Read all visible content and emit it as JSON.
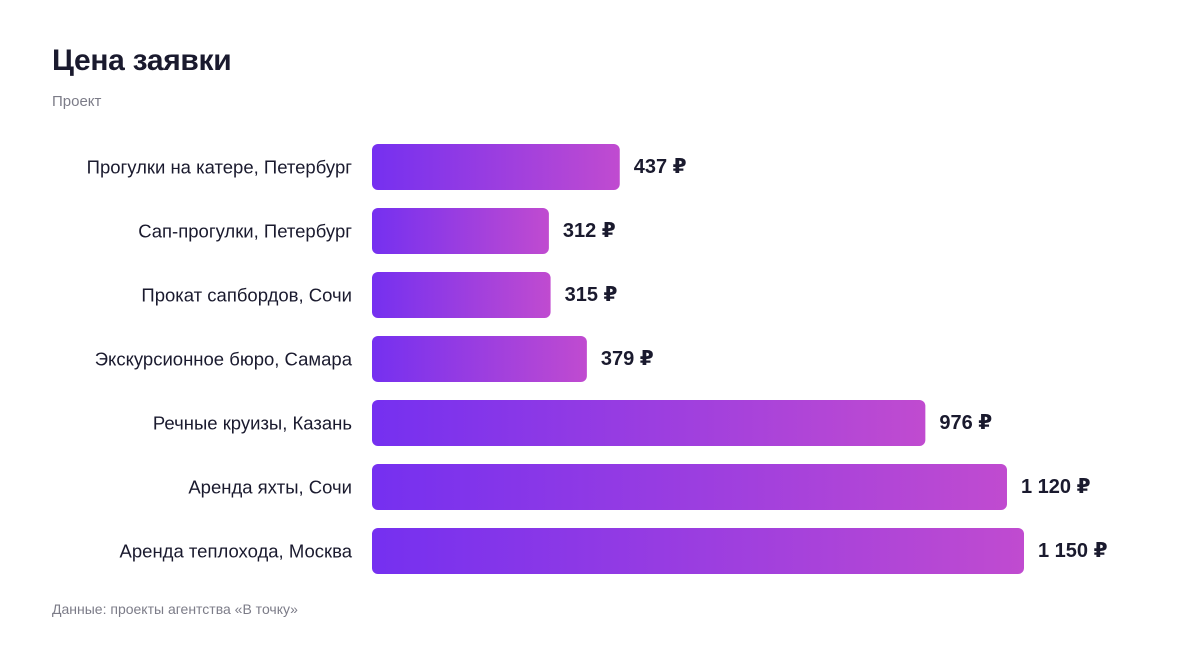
{
  "header": {
    "title": "Цена заявки",
    "subtitle": "Проект"
  },
  "footer": {
    "source": "Данные: проекты агентства «В точку»"
  },
  "colors": {
    "bar_gradient_start": "#7530f0",
    "bar_gradient_end": "#c04bd0",
    "text": "#1a1a2e",
    "muted": "#7c7c88"
  },
  "chart_data": {
    "type": "bar",
    "orientation": "horizontal",
    "categories": [
      "Прогулки на катере, Петербург",
      "Сап-прогулки, Петербург",
      "Прокат сапбордов, Сочи",
      "Экскурсионное бюро, Самара",
      "Речные круизы, Казань",
      "Аренда яхты, Сочи",
      "Аренда теплохода, Москва"
    ],
    "values": [
      437,
      312,
      315,
      379,
      976,
      1120,
      1150
    ],
    "value_labels": [
      "437 ₽",
      "312 ₽",
      "315 ₽",
      "379 ₽",
      "976 ₽",
      "1 120 ₽",
      "1 150 ₽"
    ],
    "title": "Цена заявки",
    "subtitle": "Проект",
    "unit": "₽",
    "grid": false,
    "legend": "none"
  }
}
